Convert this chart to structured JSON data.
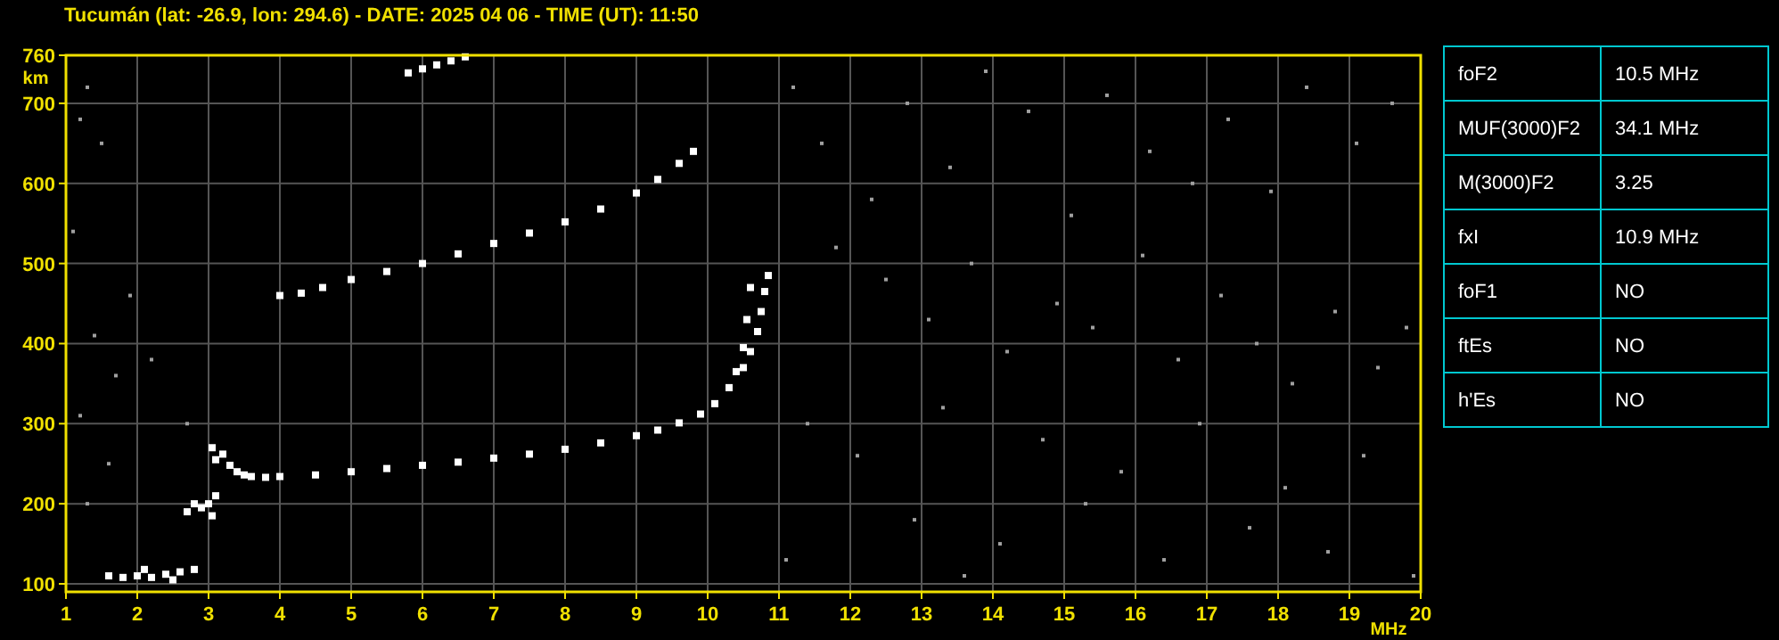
{
  "chart_data": [
    {
      "type": "scatter",
      "title": "Tucumán (lat: -26.9, lon: 294.6) - DATE: 2025 04 06 - TIME (UT): 11:50",
      "xlabel": "MHz",
      "ylabel": "km",
      "xlim": [
        1,
        20
      ],
      "ylim": [
        90,
        760
      ],
      "xticks": [
        1,
        2,
        3,
        4,
        5,
        6,
        7,
        8,
        9,
        10,
        11,
        12,
        13,
        14,
        15,
        16,
        17,
        18,
        19,
        20
      ],
      "yticks": [
        100,
        200,
        300,
        400,
        500,
        600,
        700,
        760
      ],
      "grid": true,
      "marker": "square",
      "series": [
        {
          "color": "#ffffff",
          "x": [
            3.05,
            3.1,
            3.2,
            3.3,
            3.4,
            3.5,
            3.6,
            3.8,
            4,
            4.5,
            5,
            5.5,
            6,
            6.5,
            7,
            7.5,
            8,
            8.5,
            9,
            9.3,
            9.6,
            9.9,
            10.1,
            10.3,
            10.4,
            10.5,
            10.55,
            10.6
          ],
          "values": [
            270,
            255,
            262,
            248,
            240,
            236,
            234,
            233,
            234,
            236,
            240,
            244,
            248,
            252,
            257,
            262,
            268,
            276,
            285,
            292,
            301,
            312,
            325,
            345,
            365,
            395,
            430,
            470
          ]
        },
        {
          "color": "#ffffff",
          "x": [
            10.5,
            10.6,
            10.7,
            10.75,
            10.8,
            10.85
          ],
          "values": [
            370,
            390,
            415,
            440,
            465,
            485
          ]
        },
        {
          "color": "#ffffff",
          "x": [
            4,
            4.3,
            4.6,
            5,
            5.5,
            6,
            6.5,
            7,
            7.5,
            8,
            8.5,
            9,
            9.3,
            9.6,
            9.8
          ],
          "values": [
            460,
            463,
            470,
            480,
            490,
            500,
            512,
            525,
            538,
            552,
            568,
            588,
            605,
            625,
            640
          ]
        },
        {
          "color": "#ffffff",
          "x": [
            5.8,
            6,
            6.2,
            6.4,
            6.6
          ],
          "values": [
            738,
            743,
            748,
            753,
            758
          ]
        },
        {
          "color": "#ffffff",
          "x": [
            1.6,
            1.8,
            2,
            2.1,
            2.2,
            2.4,
            2.5,
            2.6,
            2.8,
            2.7,
            2.8,
            2.9,
            3,
            3.05,
            3.1
          ],
          "values": [
            110,
            108,
            110,
            118,
            108,
            112,
            105,
            115,
            118,
            190,
            200,
            195,
            200,
            185,
            210
          ]
        },
        {
          "color": "#a0a0a0",
          "x": [
            1.2,
            1.3,
            1.5,
            1.1,
            1.4,
            1.7,
            1.2,
            1.6,
            1.3,
            2.2,
            2.7,
            1.9,
            11.2,
            11.6,
            12.3,
            12.8,
            13.4,
            13.9,
            14.5,
            15.1,
            15.6,
            16.2,
            16.8,
            17.3,
            17.9,
            18.4,
            19.1,
            19.6,
            11.8,
            12.5,
            13.1,
            13.7,
            14.2,
            14.9,
            15.4,
            16.1,
            16.6,
            17.2,
            17.7,
            18.2,
            18.8,
            19.4,
            19.8,
            11.4,
            12.1,
            13.3,
            14.7,
            15.8,
            16.9,
            18.1,
            19.2,
            12.9,
            14.1,
            15.3,
            16.4,
            17.6,
            18.7,
            19.9,
            11.1,
            13.6
          ],
          "values": [
            680,
            720,
            650,
            540,
            410,
            360,
            310,
            250,
            200,
            380,
            300,
            460,
            720,
            650,
            580,
            700,
            620,
            740,
            690,
            560,
            710,
            640,
            600,
            680,
            590,
            720,
            650,
            700,
            520,
            480,
            430,
            500,
            390,
            450,
            420,
            510,
            380,
            460,
            400,
            350,
            440,
            370,
            420,
            300,
            260,
            320,
            280,
            240,
            300,
            220,
            260,
            180,
            150,
            200,
            130,
            170,
            140,
            110,
            130,
            110
          ]
        }
      ]
    },
    {
      "type": "other",
      "annotations": [
        "foF2",
        "10.5 MHz",
        "MUF(3000)F2",
        "34.1 MHz",
        "M(3000)F2",
        "3.25",
        "fxI",
        "10.9 MHz",
        "foF1",
        "NO",
        "ftEs",
        "NO",
        "h'Es",
        "NO"
      ]
    }
  ]
}
